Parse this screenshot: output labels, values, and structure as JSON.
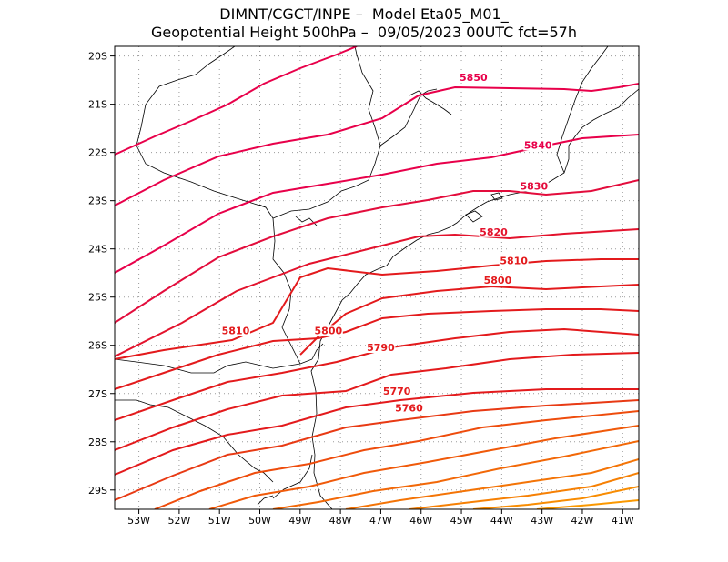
{
  "title_line1": "DIMNT/CGCT/INPE –  Model Eta05_M01_",
  "title_line2": "Geopotential Height 500hPa –  09/05/2023 00UTC fct=57h",
  "axes": {
    "lat_ticks": [
      "20S",
      "21S",
      "22S",
      "23S",
      "24S",
      "25S",
      "26S",
      "27S",
      "28S",
      "29S"
    ],
    "lon_ticks": [
      "53W",
      "52W",
      "51W",
      "50W",
      "49W",
      "48W",
      "47W",
      "46W",
      "45W",
      "44W",
      "43W",
      "42W",
      "41W"
    ]
  },
  "map": {
    "lon_range": [
      -53.6,
      -40.6
    ],
    "lat_range": [
      -29.4,
      -19.8
    ],
    "grid": "dotted"
  },
  "contour_labels": [
    {
      "text": "5850",
      "lon": -44.7,
      "lat": -20.5,
      "color": "#e8004a"
    },
    {
      "text": "5840",
      "lon": -43.1,
      "lat": -21.9,
      "color": "#e8004a"
    },
    {
      "text": "5830",
      "lon": -43.2,
      "lat": -22.75,
      "color": "#e30c3c"
    },
    {
      "text": "5820",
      "lon": -44.2,
      "lat": -23.7,
      "color": "#e3122c"
    },
    {
      "text": "5810",
      "lon": -43.7,
      "lat": -24.3,
      "color": "#e31a1c"
    },
    {
      "text": "5800",
      "lon": -44.1,
      "lat": -24.7,
      "color": "#e31a1c"
    },
    {
      "text": "5810",
      "lon": -50.6,
      "lat": -25.75,
      "color": "#e31a1c"
    },
    {
      "text": "5800",
      "lon": -48.3,
      "lat": -25.75,
      "color": "#e31a1c"
    },
    {
      "text": "5790",
      "lon": -47.0,
      "lat": -26.1,
      "color": "#e31a1c"
    },
    {
      "text": "5770",
      "lon": -46.6,
      "lat": -27.0,
      "color": "#e31a1c"
    },
    {
      "text": "5760",
      "lon": -46.3,
      "lat": -27.35,
      "color": "#e31a1c"
    }
  ]
}
